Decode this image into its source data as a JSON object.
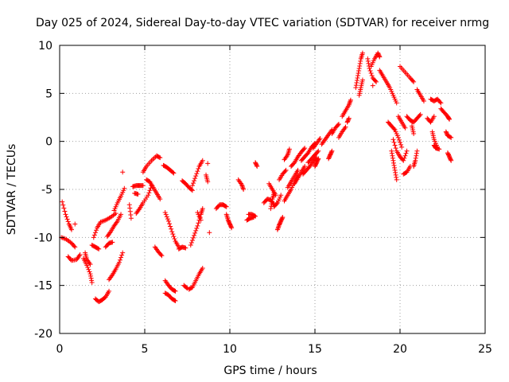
{
  "chart_data": {
    "type": "scatter",
    "title": "Day 025 of 2024, Sidereal Day-to-day VTEC variation (SDTVAR) for receiver nrmg",
    "xlabel": "GPS time / hours",
    "ylabel": "SDTVAR / TECUs",
    "xlim": [
      0,
      25
    ],
    "ylim": [
      -20,
      10
    ],
    "xticks": [
      "0",
      "5",
      "10",
      "15",
      "20",
      "25"
    ],
    "yticks": [
      "-20",
      "-15",
      "-10",
      "-5",
      "0",
      "5",
      "10"
    ],
    "grid": true,
    "marker": "+",
    "color": "#ff0000",
    "tracks": [
      [
        [
          0.15,
          -6.3
        ],
        [
          0.35,
          -7.6
        ],
        [
          0.55,
          -8.6
        ],
        [
          0.7,
          -9.2
        ]
      ],
      [
        [
          0.1,
          -10.0
        ],
        [
          0.4,
          -10.2
        ],
        [
          0.7,
          -10.6
        ],
        [
          0.9,
          -11.0
        ]
      ],
      [
        [
          0.5,
          -12.0
        ],
        [
          0.7,
          -12.4
        ],
        [
          1.0,
          -12.3
        ],
        [
          1.2,
          -11.8
        ]
      ],
      [
        [
          0.9,
          -8.6
        ]
      ],
      [
        [
          1.4,
          -12.2
        ],
        [
          1.6,
          -12.9
        ],
        [
          1.8,
          -13.8
        ],
        [
          1.9,
          -14.7
        ]
      ],
      [
        [
          1.5,
          -11.6
        ],
        [
          1.6,
          -12.3
        ],
        [
          1.8,
          -12.8
        ]
      ],
      [
        [
          1.9,
          -10.8
        ],
        [
          2.1,
          -11.0
        ],
        [
          2.3,
          -11.2
        ]
      ],
      [
        [
          2.0,
          -10.0
        ],
        [
          2.2,
          -9.0
        ],
        [
          2.4,
          -8.4
        ],
        [
          2.7,
          -8.2
        ],
        [
          3.0,
          -7.9
        ],
        [
          3.3,
          -7.5
        ]
      ],
      [
        [
          2.1,
          -16.4
        ],
        [
          2.3,
          -16.7
        ],
        [
          2.5,
          -16.5
        ],
        [
          2.7,
          -16.2
        ],
        [
          2.9,
          -15.6
        ]
      ],
      [
        [
          2.7,
          -11.0
        ],
        [
          2.9,
          -10.6
        ],
        [
          3.1,
          -10.5
        ]
      ],
      [
        [
          2.8,
          -9.9
        ],
        [
          3.0,
          -9.4
        ],
        [
          3.2,
          -8.8
        ],
        [
          3.4,
          -8.3
        ],
        [
          3.6,
          -7.6
        ]
      ],
      [
        [
          2.9,
          -14.4
        ],
        [
          3.1,
          -13.9
        ],
        [
          3.3,
          -13.3
        ],
        [
          3.5,
          -12.6
        ],
        [
          3.7,
          -11.6
        ]
      ],
      [
        [
          3.2,
          -7.2
        ],
        [
          3.4,
          -6.4
        ],
        [
          3.6,
          -5.7
        ],
        [
          3.8,
          -4.9
        ]
      ],
      [
        [
          3.7,
          -3.2
        ]
      ],
      [
        [
          4.1,
          -6.6
        ],
        [
          4.2,
          -8.0
        ]
      ],
      [
        [
          4.3,
          -4.7
        ],
        [
          4.5,
          -4.6
        ],
        [
          4.7,
          -4.6
        ],
        [
          4.9,
          -4.6
        ]
      ],
      [
        [
          4.4,
          -5.4
        ],
        [
          4.6,
          -5.5
        ]
      ],
      [
        [
          4.5,
          -7.5
        ],
        [
          4.7,
          -7.0
        ],
        [
          4.9,
          -6.4
        ],
        [
          5.2,
          -5.6
        ],
        [
          5.4,
          -4.6
        ]
      ],
      [
        [
          4.9,
          -3.2
        ],
        [
          5.1,
          -2.6
        ],
        [
          5.4,
          -2.0
        ],
        [
          5.7,
          -1.5
        ],
        [
          5.9,
          -1.7
        ]
      ],
      [
        [
          5.1,
          -4.0
        ],
        [
          5.3,
          -4.2
        ],
        [
          5.5,
          -4.8
        ],
        [
          5.7,
          -5.4
        ],
        [
          5.9,
          -6.0
        ]
      ],
      [
        [
          5.6,
          -11.0
        ],
        [
          5.8,
          -11.5
        ],
        [
          6.0,
          -11.9
        ]
      ],
      [
        [
          6.1,
          -2.5
        ],
        [
          6.3,
          -2.7
        ],
        [
          6.5,
          -3.0
        ],
        [
          6.7,
          -3.3
        ]
      ],
      [
        [
          6.2,
          -7.4
        ],
        [
          6.4,
          -8.3
        ],
        [
          6.6,
          -9.4
        ],
        [
          6.8,
          -10.4
        ],
        [
          7.0,
          -11.0
        ]
      ],
      [
        [
          6.2,
          -14.5
        ],
        [
          6.4,
          -15.0
        ],
        [
          6.6,
          -15.4
        ],
        [
          6.8,
          -15.6
        ]
      ],
      [
        [
          6.2,
          -15.8
        ],
        [
          6.4,
          -16.0
        ],
        [
          6.6,
          -16.4
        ],
        [
          6.8,
          -16.6
        ]
      ],
      [
        [
          7.0,
          -11.2
        ],
        [
          7.2,
          -11.0
        ],
        [
          7.4,
          -11.1
        ]
      ],
      [
        [
          7.2,
          -4.1
        ],
        [
          7.4,
          -4.4
        ],
        [
          7.6,
          -4.8
        ],
        [
          7.8,
          -5.1
        ]
      ],
      [
        [
          7.3,
          -15.0
        ],
        [
          7.5,
          -15.3
        ]
      ],
      [
        [
          7.6,
          -15.4
        ],
        [
          7.8,
          -15.2
        ],
        [
          8.0,
          -14.5
        ],
        [
          8.2,
          -13.8
        ],
        [
          8.4,
          -13.2
        ]
      ],
      [
        [
          7.7,
          -10.8
        ],
        [
          7.9,
          -9.8
        ],
        [
          8.1,
          -8.8
        ],
        [
          8.3,
          -7.6
        ],
        [
          8.4,
          -7.0
        ]
      ],
      [
        [
          7.8,
          -4.6
        ],
        [
          8.0,
          -3.6
        ],
        [
          8.2,
          -2.6
        ],
        [
          8.4,
          -2.0
        ]
      ],
      [
        [
          8.1,
          -7.4
        ],
        [
          8.3,
          -8.2
        ]
      ],
      [
        [
          8.6,
          -3.5
        ],
        [
          8.7,
          -4.2
        ]
      ],
      [
        [
          8.7,
          -2.3
        ]
      ],
      [
        [
          8.8,
          -9.5
        ]
      ],
      [
        [
          9.2,
          -7.0
        ],
        [
          9.4,
          -6.6
        ],
        [
          9.6,
          -6.6
        ],
        [
          9.8,
          -6.8
        ]
      ],
      [
        [
          9.8,
          -7.6
        ],
        [
          9.9,
          -8.2
        ],
        [
          10.0,
          -8.6
        ],
        [
          10.1,
          -9.0
        ]
      ],
      [
        [
          10.5,
          -4.0
        ],
        [
          10.7,
          -4.5
        ],
        [
          10.8,
          -5.0
        ]
      ],
      [
        [
          11.1,
          -7.6
        ],
        [
          11.3,
          -7.6
        ],
        [
          11.5,
          -7.8
        ]
      ],
      [
        [
          11.0,
          -8.2
        ],
        [
          11.2,
          -8.0
        ],
        [
          11.4,
          -7.9
        ]
      ],
      [
        [
          11.5,
          -2.2
        ],
        [
          11.6,
          -2.6
        ]
      ],
      [
        [
          12.0,
          -6.4
        ],
        [
          12.2,
          -6.0
        ],
        [
          12.4,
          -6.1
        ],
        [
          12.6,
          -6.6
        ]
      ],
      [
        [
          12.3,
          -4.4
        ],
        [
          12.5,
          -5.0
        ],
        [
          12.7,
          -5.6
        ]
      ],
      [
        [
          12.4,
          -7.0
        ],
        [
          12.5,
          -6.0
        ],
        [
          12.6,
          -5.4
        ]
      ],
      [
        [
          12.6,
          -6.8
        ],
        [
          12.8,
          -6.4
        ],
        [
          13.0,
          -5.6
        ]
      ],
      [
        [
          12.8,
          -9.2
        ],
        [
          12.9,
          -8.7
        ],
        [
          13.0,
          -8.3
        ],
        [
          13.1,
          -7.9
        ]
      ],
      [
        [
          12.9,
          -4.0
        ],
        [
          13.1,
          -3.4
        ],
        [
          13.3,
          -3.0
        ]
      ],
      [
        [
          13.2,
          -1.9
        ],
        [
          13.4,
          -1.4
        ],
        [
          13.5,
          -0.8
        ]
      ],
      [
        [
          13.2,
          -6.2
        ],
        [
          13.4,
          -5.6
        ],
        [
          13.6,
          -5.0
        ],
        [
          13.8,
          -4.2
        ],
        [
          14.0,
          -3.6
        ]
      ],
      [
        [
          13.4,
          -4.8
        ],
        [
          13.6,
          -4.2
        ],
        [
          13.8,
          -3.6
        ],
        [
          14.0,
          -3.0
        ]
      ],
      [
        [
          13.6,
          -2.6
        ],
        [
          13.8,
          -2.2
        ],
        [
          14.0,
          -1.6
        ],
        [
          14.2,
          -1.1
        ],
        [
          14.4,
          -0.7
        ]
      ],
      [
        [
          13.8,
          -4.4
        ],
        [
          14.0,
          -3.8
        ],
        [
          14.2,
          -3.2
        ],
        [
          14.4,
          -2.6
        ]
      ],
      [
        [
          14.2,
          -2.0
        ],
        [
          14.4,
          -1.6
        ],
        [
          14.6,
          -1.2
        ],
        [
          14.8,
          -0.6
        ],
        [
          15.0,
          -0.2
        ]
      ],
      [
        [
          14.3,
          -3.4
        ],
        [
          14.5,
          -3.0
        ],
        [
          14.7,
          -2.6
        ],
        [
          14.9,
          -2.1
        ],
        [
          15.1,
          -1.7
        ]
      ],
      [
        [
          14.6,
          -2.2
        ],
        [
          14.8,
          -1.8
        ],
        [
          15.0,
          -1.4
        ],
        [
          15.2,
          -1.0
        ]
      ],
      [
        [
          14.9,
          -0.7
        ],
        [
          15.1,
          -0.2
        ],
        [
          15.3,
          0.3
        ]
      ],
      [
        [
          15.0,
          -2.6
        ],
        [
          15.1,
          -2.2
        ],
        [
          15.2,
          -1.8
        ]
      ],
      [
        [
          15.4,
          -0.3
        ],
        [
          15.6,
          0.2
        ],
        [
          15.8,
          0.7
        ],
        [
          16.0,
          1.2
        ]
      ],
      [
        [
          15.8,
          -1.8
        ],
        [
          15.9,
          -1.4
        ],
        [
          16.0,
          -1.0
        ]
      ],
      [
        [
          16.0,
          0.8
        ],
        [
          16.2,
          1.4
        ],
        [
          16.4,
          1.8
        ]
      ],
      [
        [
          16.4,
          0.4
        ],
        [
          16.6,
          1.0
        ],
        [
          16.8,
          1.5
        ]
      ],
      [
        [
          16.6,
          2.6
        ],
        [
          16.8,
          3.2
        ],
        [
          17.0,
          3.8
        ],
        [
          17.1,
          4.3
        ]
      ],
      [
        [
          16.9,
          2.0
        ],
        [
          17.0,
          2.4
        ]
      ],
      [
        [
          17.4,
          5.6
        ],
        [
          17.5,
          6.6
        ],
        [
          17.6,
          7.6
        ],
        [
          17.7,
          8.6
        ],
        [
          17.8,
          9.2
        ]
      ],
      [
        [
          17.6,
          4.8
        ],
        [
          17.7,
          5.6
        ],
        [
          17.8,
          6.4
        ]
      ],
      [
        [
          18.1,
          8.6
        ],
        [
          18.2,
          7.6
        ],
        [
          18.4,
          6.6
        ],
        [
          18.6,
          6.2
        ]
      ],
      [
        [
          18.3,
          7.8
        ],
        [
          18.5,
          8.6
        ],
        [
          18.7,
          9.2
        ],
        [
          18.8,
          8.8
        ]
      ],
      [
        [
          18.4,
          5.8
        ]
      ],
      [
        [
          18.8,
          7.4
        ],
        [
          19.0,
          6.8
        ],
        [
          19.2,
          6.2
        ],
        [
          19.4,
          5.6
        ],
        [
          19.6,
          4.8
        ],
        [
          19.8,
          4.0
        ]
      ],
      [
        [
          19.3,
          2.0
        ],
        [
          19.5,
          1.6
        ],
        [
          19.7,
          1.2
        ],
        [
          19.9,
          0.4
        ],
        [
          20.1,
          -0.6
        ]
      ],
      [
        [
          19.5,
          -1.0
        ],
        [
          19.6,
          -2.0
        ],
        [
          19.7,
          -3.0
        ],
        [
          19.8,
          -4.0
        ]
      ],
      [
        [
          19.6,
          0.2
        ],
        [
          19.8,
          -1.0
        ],
        [
          20.0,
          -1.6
        ],
        [
          20.2,
          -2.0
        ],
        [
          20.4,
          -1.0
        ]
      ],
      [
        [
          19.9,
          2.6
        ],
        [
          20.1,
          2.0
        ],
        [
          20.3,
          1.4
        ]
      ],
      [
        [
          20.0,
          7.8
        ],
        [
          20.3,
          7.2
        ],
        [
          20.6,
          6.6
        ],
        [
          20.8,
          6.2
        ]
      ],
      [
        [
          20.2,
          -3.4
        ],
        [
          20.4,
          -3.2
        ],
        [
          20.6,
          -2.6
        ]
      ],
      [
        [
          20.4,
          2.6
        ],
        [
          20.6,
          2.2
        ],
        [
          20.8,
          2.0
        ],
        [
          21.0,
          2.4
        ],
        [
          21.2,
          2.8
        ]
      ],
      [
        [
          20.8,
          -2.6
        ],
        [
          20.9,
          -2.0
        ],
        [
          21.0,
          -1.0
        ]
      ],
      [
        [
          20.7,
          1.6
        ],
        [
          20.8,
          0.8
        ]
      ],
      [
        [
          21.0,
          5.4
        ],
        [
          21.2,
          4.8
        ],
        [
          21.4,
          4.2
        ]
      ],
      [
        [
          21.6,
          2.4
        ],
        [
          21.8,
          2.0
        ],
        [
          22.0,
          2.6
        ]
      ],
      [
        [
          21.8,
          4.4
        ],
        [
          22.0,
          4.2
        ],
        [
          22.2,
          4.4
        ],
        [
          22.4,
          4.0
        ]
      ],
      [
        [
          21.9,
          1.0
        ],
        [
          22.0,
          0.2
        ],
        [
          22.2,
          -0.6
        ]
      ],
      [
        [
          22.0,
          -0.4
        ],
        [
          22.1,
          -0.7
        ],
        [
          22.3,
          -0.8
        ]
      ],
      [
        [
          22.4,
          3.4
        ],
        [
          22.6,
          3.0
        ],
        [
          22.8,
          2.6
        ],
        [
          22.9,
          2.3
        ]
      ],
      [
        [
          22.7,
          1.0
        ],
        [
          22.8,
          0.6
        ],
        [
          23.0,
          0.4
        ]
      ],
      [
        [
          22.8,
          -1.2
        ],
        [
          22.9,
          -1.6
        ],
        [
          23.0,
          -2.0
        ]
      ]
    ]
  }
}
